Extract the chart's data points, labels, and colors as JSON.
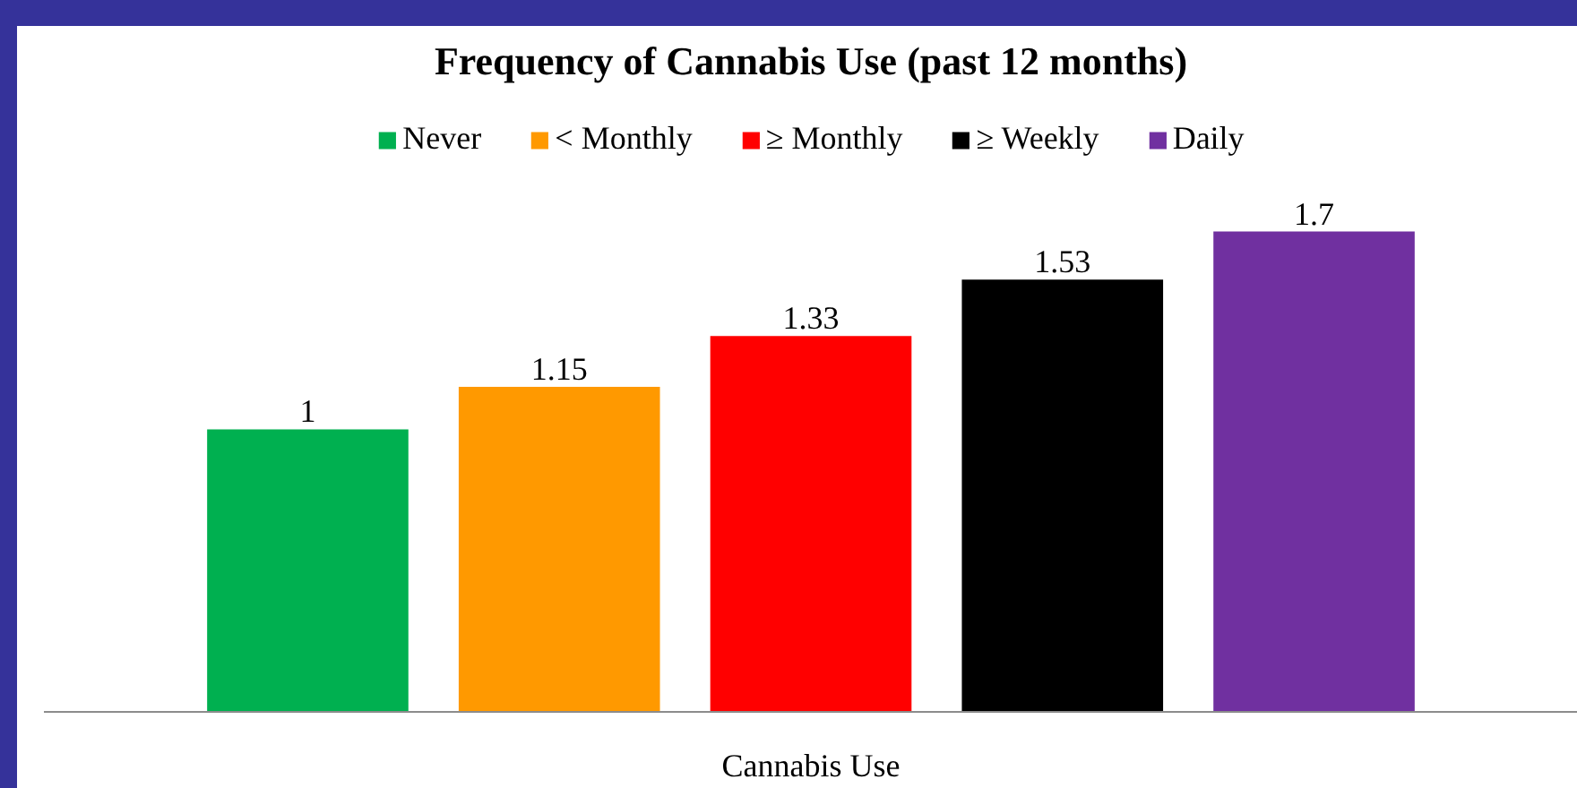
{
  "chart_data": {
    "type": "bar",
    "title": "Frequency of Cannabis Use (past 12 months)",
    "xlabel": "Cannabis Use",
    "categories": [
      null
    ],
    "series": [
      {
        "name": "Never",
        "color": "#00b050",
        "values": [
          1
        ]
      },
      {
        "name": "< Monthly",
        "color": "#ff9900",
        "values": [
          1.15
        ]
      },
      {
        "name": "≥ Monthly",
        "color": "#ff0000",
        "values": [
          1.33
        ]
      },
      {
        "name": "≥ Weekly",
        "color": "#000000",
        "values": [
          1.53
        ]
      },
      {
        "name": "Daily",
        "color": "#7030a0",
        "values": [
          1.7
        ]
      }
    ],
    "data_labels": true,
    "legend": "top",
    "tick_labels": false
  }
}
